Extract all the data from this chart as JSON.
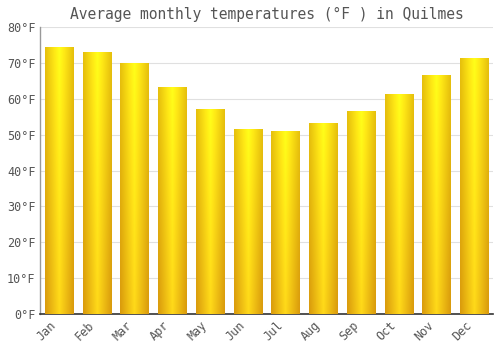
{
  "title": "Average monthly temperatures (°F ) in Quilmes",
  "months": [
    "Jan",
    "Feb",
    "Mar",
    "Apr",
    "May",
    "Jun",
    "Jul",
    "Aug",
    "Sep",
    "Oct",
    "Nov",
    "Dec"
  ],
  "values": [
    74.5,
    73.0,
    69.8,
    63.3,
    57.2,
    51.4,
    51.0,
    53.1,
    56.6,
    61.3,
    66.6,
    71.4
  ],
  "bar_color_dark": "#E8890A",
  "bar_color_mid": "#F5A623",
  "bar_color_light": "#FFCC44",
  "background_color": "#FFFFFF",
  "grid_color": "#E0E0E0",
  "text_color": "#555555",
  "ylim": [
    0,
    80
  ],
  "yticks": [
    0,
    10,
    20,
    30,
    40,
    50,
    60,
    70,
    80
  ],
  "title_fontsize": 10.5,
  "tick_fontsize": 8.5,
  "figsize": [
    5.0,
    3.5
  ],
  "dpi": 100
}
